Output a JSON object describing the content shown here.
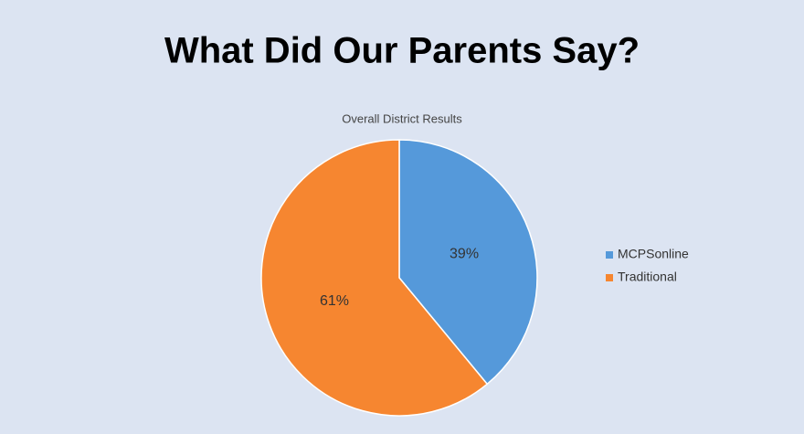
{
  "slide_title": "What Did Our Parents Say?",
  "chart_data": {
    "type": "pie",
    "title": "Overall District Results",
    "categories": [
      "MCPSonline",
      "Traditional"
    ],
    "values": [
      39,
      61
    ],
    "value_labels": [
      "39%",
      "61%"
    ],
    "colors": [
      "#5599da",
      "#f68630"
    ],
    "legend": "right"
  }
}
